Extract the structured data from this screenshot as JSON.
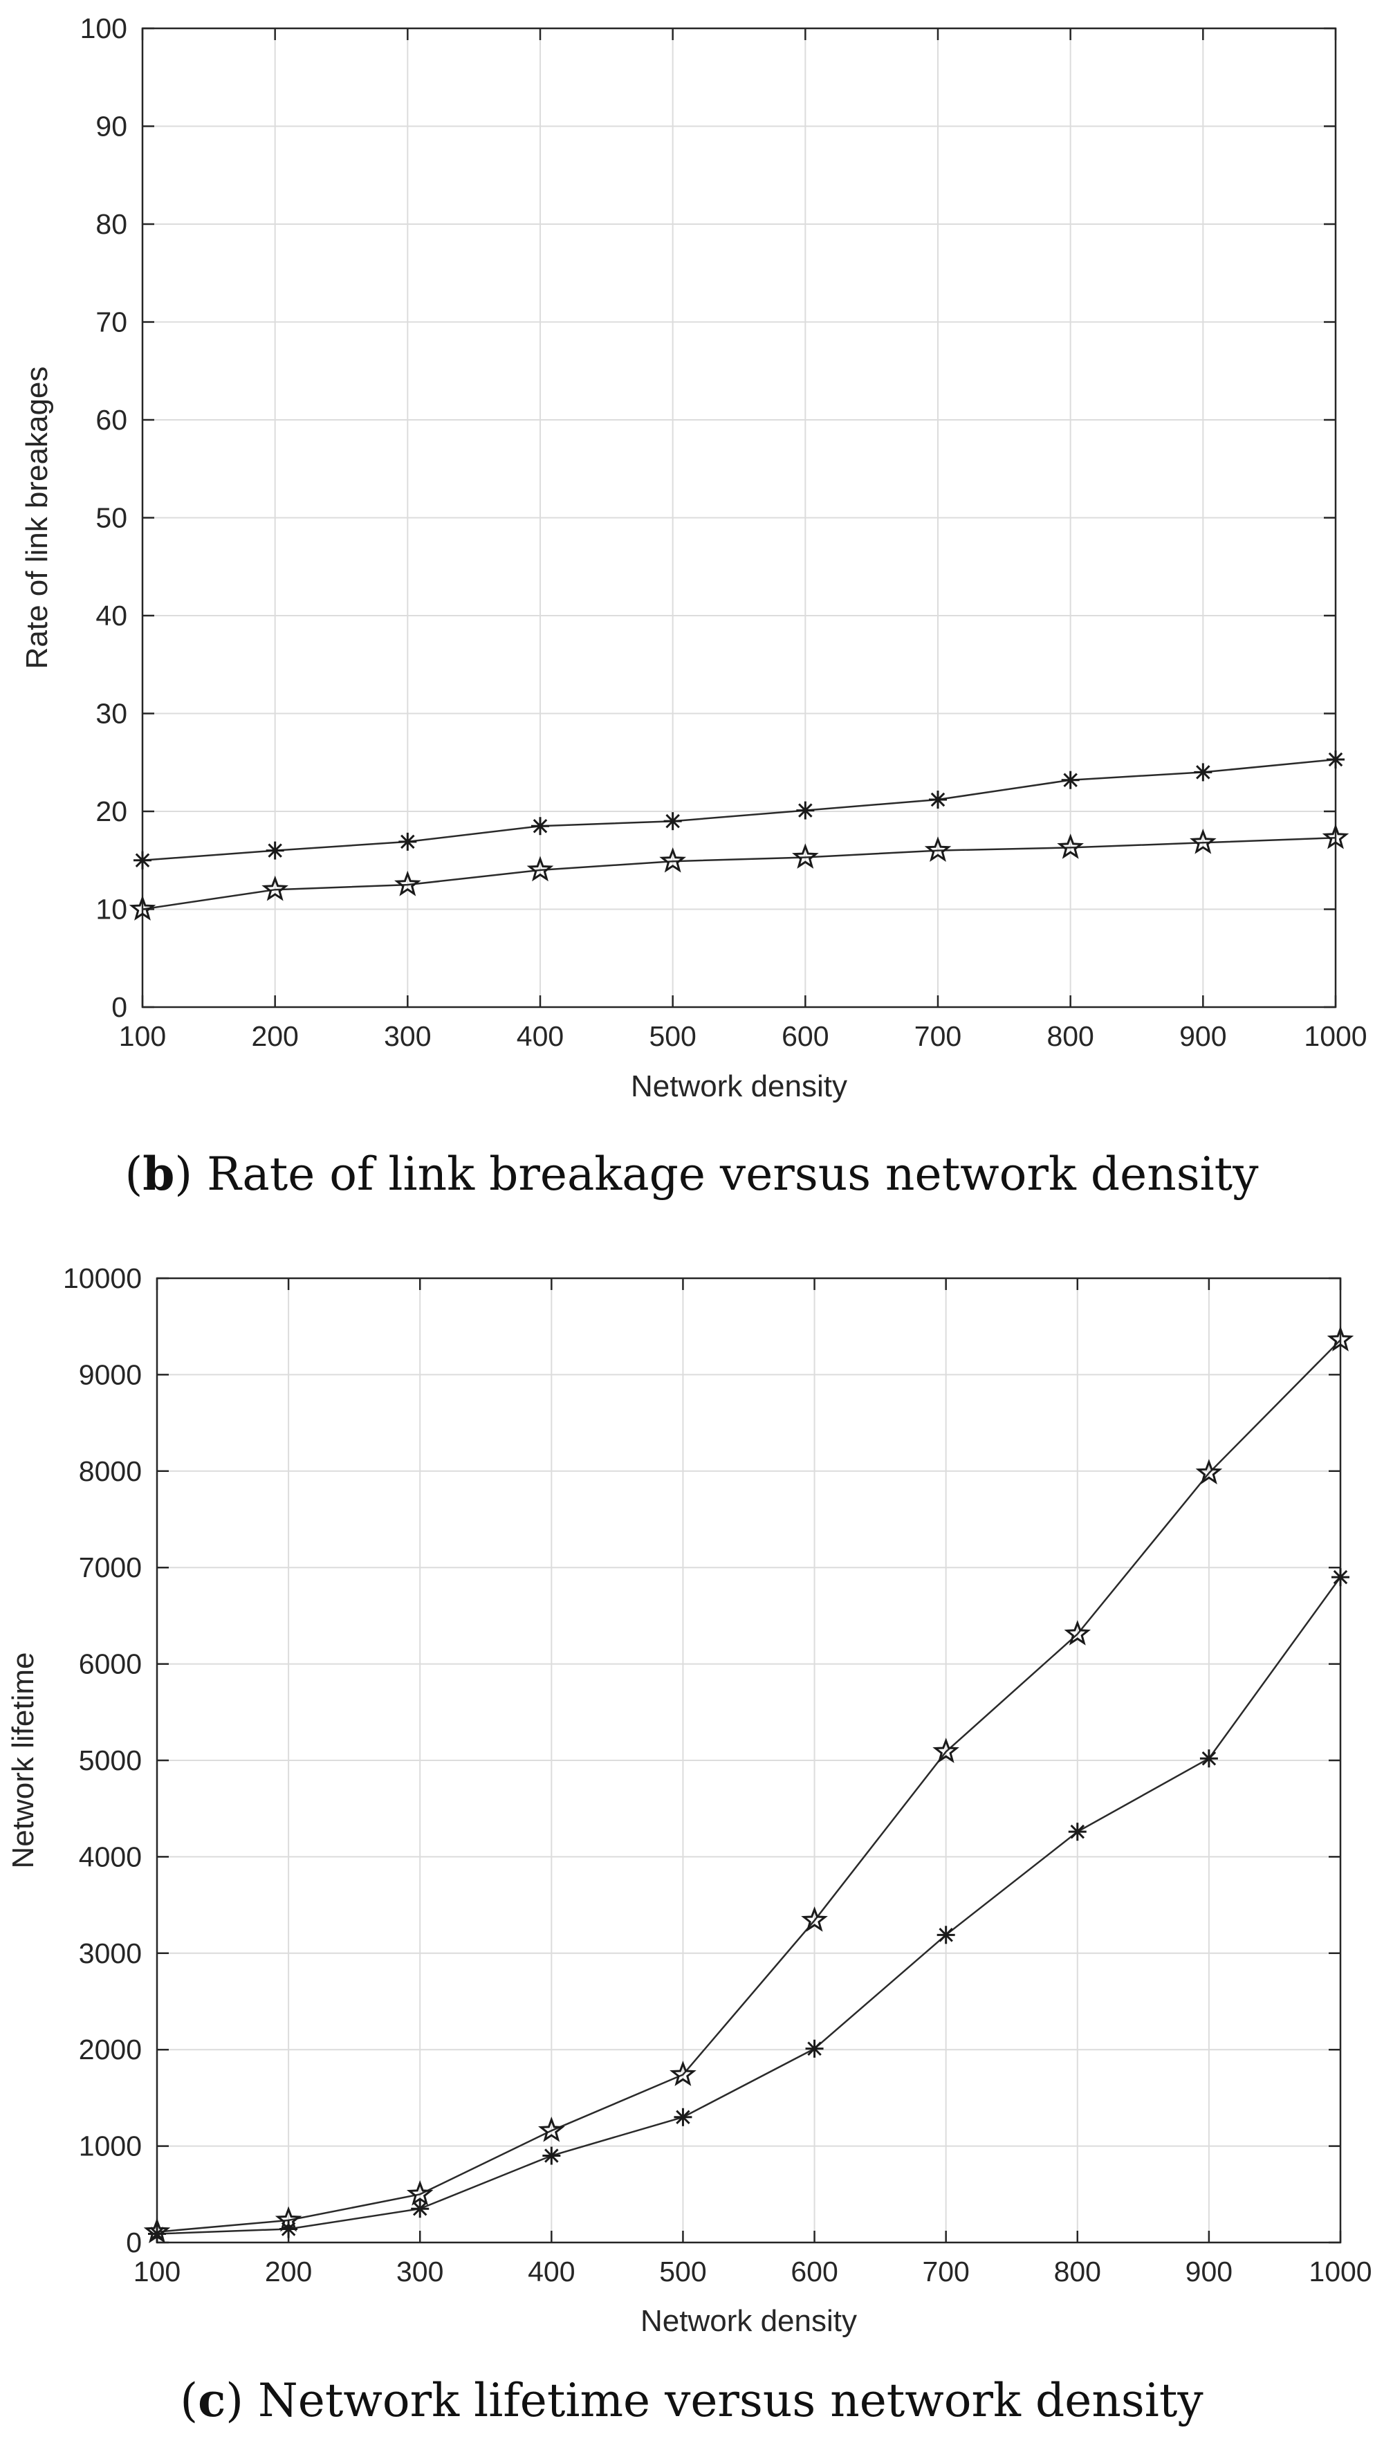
{
  "chart_data": [
    {
      "type": "line",
      "panel": "b",
      "caption_letter": "b",
      "caption_text": "Rate of link breakage versus network density",
      "title": "",
      "xlabel": "Network density",
      "ylabel": "Rate of link breakages",
      "xlim": [
        100,
        1000
      ],
      "ylim": [
        0,
        100
      ],
      "xticks": [
        100,
        200,
        300,
        400,
        500,
        600,
        700,
        800,
        900,
        1000
      ],
      "yticks": [
        0,
        10,
        20,
        30,
        40,
        50,
        60,
        70,
        80,
        90,
        100
      ],
      "grid": true,
      "x": [
        100,
        200,
        300,
        400,
        500,
        600,
        700,
        800,
        900,
        1000
      ],
      "series": [
        {
          "name": "asterisk series",
          "marker": "asterisk",
          "values": [
            15,
            16,
            16.9,
            18.5,
            19,
            20.1,
            21.2,
            23.2,
            24,
            25.3
          ]
        },
        {
          "name": "pentagram series",
          "marker": "pentagram",
          "values": [
            10,
            12,
            12.5,
            14,
            14.9,
            15.3,
            16,
            16.3,
            16.8,
            17.3
          ]
        }
      ]
    },
    {
      "type": "line",
      "panel": "c",
      "caption_letter": "c",
      "caption_text": "Network lifetime versus network density",
      "title": "",
      "xlabel": "Network density",
      "ylabel": "Network lifetime",
      "xlim": [
        100,
        1000
      ],
      "ylim": [
        0,
        10000
      ],
      "xticks": [
        100,
        200,
        300,
        400,
        500,
        600,
        700,
        800,
        900,
        1000
      ],
      "yticks": [
        0,
        1000,
        2000,
        3000,
        4000,
        5000,
        6000,
        7000,
        8000,
        9000,
        10000
      ],
      "grid": true,
      "x": [
        100,
        200,
        300,
        400,
        500,
        600,
        700,
        800,
        900,
        1000
      ],
      "series": [
        {
          "name": "pentagram series",
          "marker": "pentagram",
          "values": [
            110,
            230,
            500,
            1160,
            1740,
            3340,
            5090,
            6310,
            7980,
            9360
          ]
        },
        {
          "name": "asterisk series",
          "marker": "asterisk",
          "values": [
            90,
            140,
            350,
            900,
            1300,
            2010,
            3190,
            4260,
            5020,
            6900
          ]
        }
      ]
    }
  ]
}
